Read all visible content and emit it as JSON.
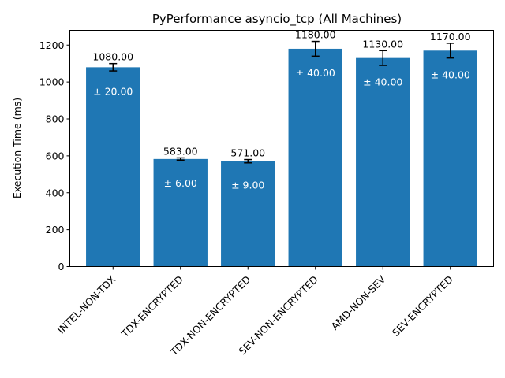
{
  "chart_data": {
    "type": "bar",
    "title": "PyPerformance asyncio_tcp (All Machines)",
    "xlabel": "",
    "ylabel": "Execution Time (ms)",
    "ylim": [
      0,
      1280
    ],
    "yticks": [
      0,
      200,
      400,
      600,
      800,
      1000,
      1200
    ],
    "grid": false,
    "bar_color": "#1f77b4",
    "categories": [
      "INTEL-NON-TDX",
      "TDX-ENCRYPTED",
      "TDX-NON-ENCRYPTED",
      "SEV-NON-ENCRYPTED",
      "AMD-NON-SEV",
      "SEV-ENCRYPTED"
    ],
    "values": [
      1080,
      583,
      571,
      1180,
      1130,
      1170
    ],
    "errors": [
      20,
      6,
      9,
      40,
      40,
      40
    ],
    "value_labels": [
      "1080.00",
      "583.00",
      "571.00",
      "1180.00",
      "1130.00",
      "1170.00"
    ],
    "error_labels": [
      "± 20.00",
      "± 6.00",
      "± 9.00",
      "± 40.00",
      "± 40.00",
      "± 40.00"
    ]
  }
}
